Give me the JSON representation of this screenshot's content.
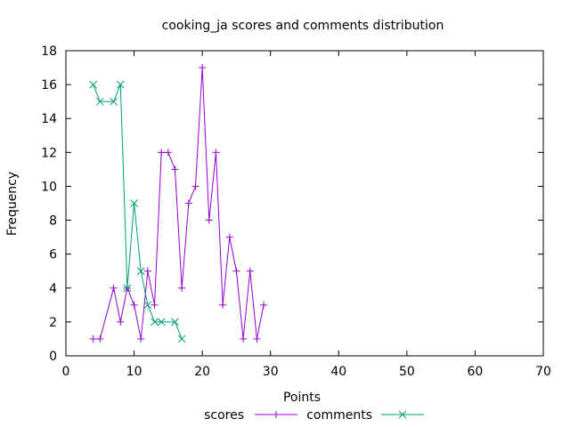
{
  "chart_data": {
    "type": "line",
    "title": "cooking_ja scores and comments distribution",
    "xlabel": "Points",
    "ylabel": "Frequency",
    "xlim": [
      0,
      70
    ],
    "ylim": [
      0,
      18
    ],
    "xticks": [
      0,
      10,
      20,
      30,
      40,
      50,
      60,
      70
    ],
    "yticks": [
      0,
      2,
      4,
      6,
      8,
      10,
      12,
      14,
      16,
      18
    ],
    "grid": false,
    "legend": "bottom-center",
    "series": [
      {
        "name": "scores",
        "color": "#9400d3",
        "marker": "plus",
        "points": [
          [
            4,
            1
          ],
          [
            5,
            1
          ],
          [
            7,
            4
          ],
          [
            8,
            2
          ],
          [
            9,
            4
          ],
          [
            10,
            3
          ],
          [
            11,
            1
          ],
          [
            12,
            5
          ],
          [
            13,
            3
          ],
          [
            14,
            12
          ],
          [
            15,
            12
          ],
          [
            16,
            11
          ],
          [
            17,
            4
          ],
          [
            18,
            9
          ],
          [
            19,
            10
          ],
          [
            20,
            17
          ],
          [
            21,
            8
          ],
          [
            22,
            12
          ],
          [
            23,
            3
          ],
          [
            24,
            7
          ],
          [
            25,
            5
          ],
          [
            26,
            1
          ],
          [
            27,
            5
          ],
          [
            28,
            1
          ],
          [
            29,
            3
          ]
        ]
      },
      {
        "name": "comments",
        "color": "#009e73",
        "marker": "cross",
        "points": [
          [
            4,
            16
          ],
          [
            5,
            15
          ],
          [
            7,
            15
          ],
          [
            8,
            16
          ],
          [
            9,
            4
          ],
          [
            10,
            9
          ],
          [
            11,
            5
          ],
          [
            12,
            3
          ],
          [
            13,
            2
          ],
          [
            14,
            2
          ],
          [
            16,
            2
          ],
          [
            17,
            1
          ]
        ]
      }
    ]
  }
}
